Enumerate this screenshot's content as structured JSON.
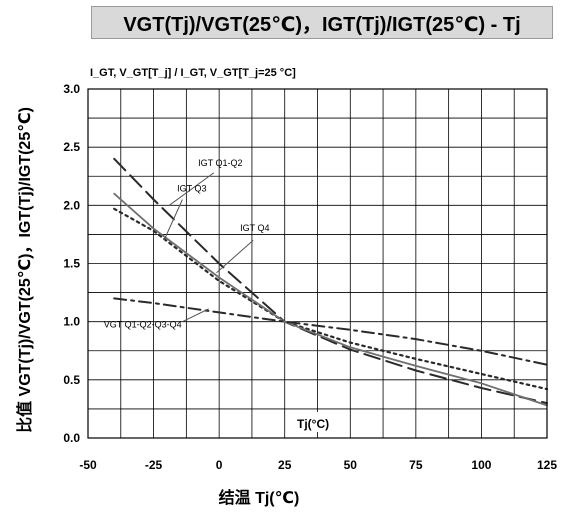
{
  "chart_data": {
    "type": "line",
    "title": "VGT(Tj)/VGT(25℃)，IGT(Tj)/IGT(25℃) - Tj",
    "axis_header": "I_GT, V_GT[T_j] / I_GT, V_GT[T_j=25 °C]",
    "ylabel": "比值 VGT(Tj)/VGT(25℃)，IGT(Tj)/IGT(25℃)",
    "xlabel": "结温 Tj(℃)",
    "inner_xlabel": "Tj(°C)",
    "xlim": [
      -50,
      125
    ],
    "ylim": [
      0,
      3
    ],
    "xticks": [
      "-50",
      "-25",
      "0",
      "25",
      "50",
      "75",
      "100",
      "125"
    ],
    "yticks": [
      "0.0",
      "0.5",
      "1.0",
      "1.5",
      "2.0",
      "2.5",
      "3.0"
    ],
    "grid": true,
    "series": [
      {
        "name": "IGT Q1-Q2",
        "style": "long-dash",
        "color": "#2a2a2a",
        "points": [
          [
            -40,
            2.4
          ],
          [
            -25,
            2.05
          ],
          [
            0,
            1.5
          ],
          [
            25,
            1.0
          ],
          [
            50,
            0.76
          ],
          [
            75,
            0.58
          ],
          [
            100,
            0.43
          ],
          [
            125,
            0.3
          ]
        ]
      },
      {
        "name": "IGT Q3",
        "style": "dotted",
        "color": "#2a2a2a",
        "points": [
          [
            -40,
            1.97
          ],
          [
            -25,
            1.78
          ],
          [
            0,
            1.35
          ],
          [
            25,
            1.0
          ],
          [
            50,
            0.82
          ],
          [
            75,
            0.68
          ],
          [
            100,
            0.55
          ],
          [
            125,
            0.42
          ]
        ]
      },
      {
        "name": "IGT Q4",
        "style": "solid",
        "color": "#6f6f6f",
        "points": [
          [
            -40,
            2.1
          ],
          [
            -25,
            1.8
          ],
          [
            0,
            1.38
          ],
          [
            25,
            1.0
          ],
          [
            50,
            0.78
          ],
          [
            75,
            0.62
          ],
          [
            100,
            0.47
          ],
          [
            125,
            0.28
          ]
        ]
      },
      {
        "name": "VGT Q1-Q2-Q3-Q4",
        "style": "dash-dot",
        "color": "#2a2a2a",
        "points": [
          [
            -40,
            1.2
          ],
          [
            -25,
            1.16
          ],
          [
            0,
            1.08
          ],
          [
            25,
            1.0
          ],
          [
            50,
            0.93
          ],
          [
            75,
            0.85
          ],
          [
            100,
            0.75
          ],
          [
            125,
            0.63
          ]
        ]
      }
    ]
  }
}
